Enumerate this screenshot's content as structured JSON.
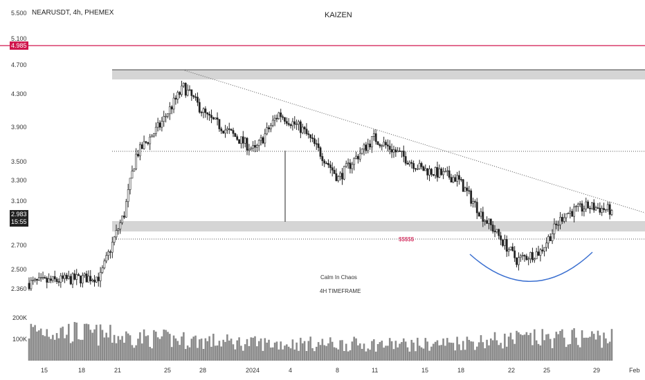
{
  "header": {
    "symbol_line": "NEARUSDT, 4h, PHEMEX",
    "title": "KAIZEN"
  },
  "annotations": {
    "line1": "Calm In Chaos",
    "line2": "4H TIMEFRAME",
    "sss_label": "$$$$$"
  },
  "price_scale": {
    "ticks": [
      "5.500",
      "5.100",
      "4.700",
      "4.300",
      "3.900",
      "3.500",
      "3.300",
      "3.100",
      "2.700",
      "2.500",
      "2.360"
    ],
    "red_level_label": "4.985",
    "current_price_label": "2.983",
    "countdown_label": "15:55"
  },
  "volume_scale": {
    "ticks": [
      "200K",
      "100K"
    ]
  },
  "time_axis": {
    "ticks": [
      "15",
      "18",
      "21",
      "25",
      "28",
      "2024",
      "4",
      "8",
      "11",
      "15",
      "18",
      "22",
      "25",
      "29",
      "Feb"
    ]
  },
  "colors": {
    "candle": "#222222",
    "red_level": "#d0164d",
    "zone_fill": "#d5d5d5",
    "volume": "#8a8a8a",
    "cup_curve": "#3a6fd0",
    "price_tag_bg": "#222222"
  },
  "chart_data": {
    "type": "candlestick",
    "symbol": "NEARUSDT",
    "interval": "4h",
    "exchange": "PHEMEX",
    "y_scale": "log",
    "ylim": [
      2.2,
      5.55
    ],
    "levels": {
      "red_line": 4.985,
      "resistance_zone": [
        4.48,
        4.62
      ],
      "support_zone": [
        2.85,
        2.93
      ],
      "support_lower_dotted": 2.79,
      "mid_dotted": 3.6
    },
    "trendline": {
      "from": [
        "2023-12-26",
        4.62
      ],
      "to": [
        "2024-01-31",
        3.0
      ]
    },
    "key_prices": [
      {
        "date": "2023-12-13",
        "close": 2.37
      },
      {
        "date": "2023-12-19",
        "close": 2.42
      },
      {
        "date": "2023-12-21",
        "close": 2.95
      },
      {
        "date": "2023-12-22",
        "close": 3.55
      },
      {
        "date": "2023-12-24",
        "close": 3.9
      },
      {
        "date": "2023-12-26",
        "close": 4.4
      },
      {
        "date": "2023-12-28",
        "close": 4.0
      },
      {
        "date": "2024-01-01",
        "close": 3.6
      },
      {
        "date": "2024-01-03",
        "close": 4.05
      },
      {
        "date": "2024-01-05",
        "close": 3.85
      },
      {
        "date": "2024-01-08",
        "close": 3.3
      },
      {
        "date": "2024-01-11",
        "close": 3.75
      },
      {
        "date": "2024-01-15",
        "close": 3.4
      },
      {
        "date": "2024-01-18",
        "close": 3.3
      },
      {
        "date": "2024-01-20",
        "close": 2.95
      },
      {
        "date": "2024-01-23",
        "close": 2.55
      },
      {
        "date": "2024-01-25",
        "close": 2.62
      },
      {
        "date": "2024-01-27",
        "close": 2.95
      },
      {
        "date": "2024-01-29",
        "close": 3.02
      },
      {
        "date": "2024-01-31",
        "close": 2.983
      }
    ],
    "volume_levels": [
      {
        "date": "2023-12-15",
        "volume": 140000
      },
      {
        "date": "2023-12-21",
        "volume": 110000
      },
      {
        "date": "2024-01-01",
        "volume": 80000
      },
      {
        "date": "2024-01-15",
        "volume": 75000
      },
      {
        "date": "2024-01-23",
        "volume": 100000
      },
      {
        "date": "2024-01-31",
        "volume": 110000
      }
    ]
  }
}
